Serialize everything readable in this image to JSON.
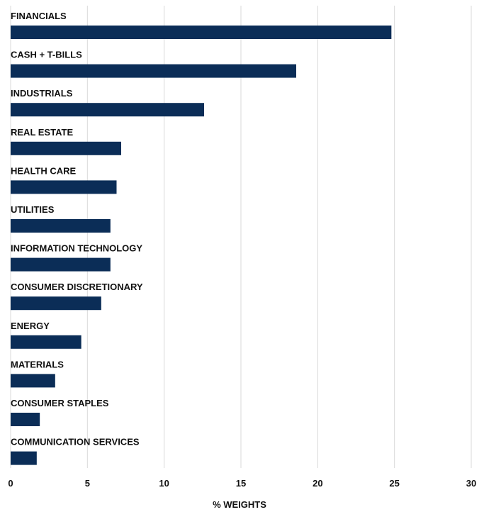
{
  "chart_data": {
    "type": "bar",
    "orientation": "horizontal",
    "categories": [
      "FINANCIALS",
      "CASH + T-BILLS",
      "INDUSTRIALS",
      "REAL ESTATE",
      "HEALTH CARE",
      "UTILITIES",
      "INFORMATION TECHNOLOGY",
      "CONSUMER DISCRETIONARY",
      "ENERGY",
      "MATERIALS",
      "CONSUMER STAPLES",
      "COMMUNICATION SERVICES"
    ],
    "values": [
      24.8,
      18.6,
      12.6,
      7.2,
      6.9,
      6.5,
      6.5,
      5.9,
      4.6,
      2.9,
      1.9,
      1.7
    ],
    "xlabel": "% WEIGHTS",
    "ylabel": "",
    "xlim": [
      0,
      30
    ],
    "xticks": [
      0,
      5,
      10,
      15,
      20,
      25,
      30
    ],
    "grid": true,
    "legend": "none",
    "bar_color": "#0b2d57"
  }
}
